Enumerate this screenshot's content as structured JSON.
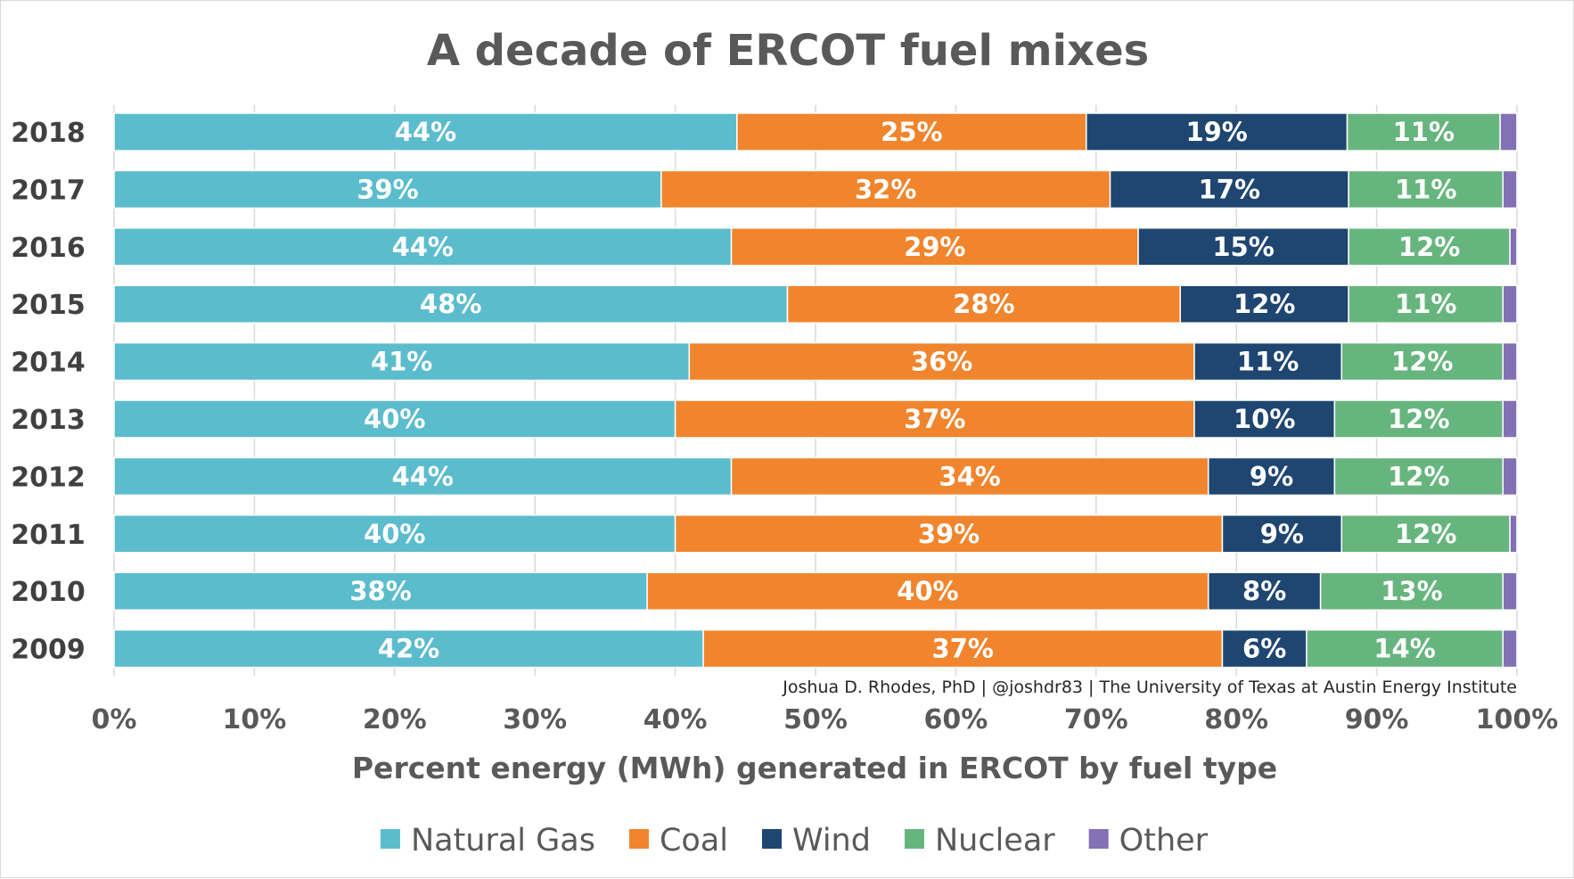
{
  "chart_data": {
    "type": "bar",
    "orientation": "horizontal",
    "stacked": "percent",
    "title": "A decade of ERCOT fuel mixes",
    "xlabel": "Percent energy (MWh) generated in ERCOT by fuel type",
    "ylabel": "",
    "xlim": [
      0,
      100
    ],
    "x_ticks": [
      "0%",
      "10%",
      "20%",
      "30%",
      "40%",
      "50%",
      "60%",
      "70%",
      "80%",
      "90%",
      "100%"
    ],
    "grid": true,
    "legend_position": "bottom",
    "credit": "Joshua D. Rhodes, PhD | @joshdr83 | The University of Texas at Austin Energy Institute",
    "categories": [
      "2018",
      "2017",
      "2016",
      "2015",
      "2014",
      "2013",
      "2012",
      "2011",
      "2010",
      "2009"
    ],
    "series": [
      {
        "name": "Natural Gas",
        "color": "#5bbccd",
        "values": [
          44.4,
          39.0,
          44.0,
          48.0,
          41.0,
          40.0,
          44.0,
          40.0,
          38.0,
          42.0
        ],
        "labels": [
          "44%",
          "39%",
          "44%",
          "48%",
          "41%",
          "40%",
          "44%",
          "40%",
          "38%",
          "42%"
        ]
      },
      {
        "name": "Coal",
        "color": "#f0852d",
        "values": [
          24.9,
          32.0,
          29.0,
          28.0,
          36.0,
          37.0,
          34.0,
          39.0,
          40.0,
          37.0
        ],
        "labels": [
          "25%",
          "32%",
          "29%",
          "28%",
          "36%",
          "37%",
          "34%",
          "39%",
          "40%",
          "37%"
        ]
      },
      {
        "name": "Wind",
        "color": "#1f4670",
        "values": [
          18.6,
          17.0,
          15.0,
          12.0,
          10.5,
          10.0,
          9.0,
          8.5,
          8.0,
          6.0
        ],
        "labels": [
          "19%",
          "17%",
          "15%",
          "12%",
          "11%",
          "10%",
          "9%",
          "9%",
          "8%",
          "6%"
        ]
      },
      {
        "name": "Nuclear",
        "color": "#67b57e",
        "values": [
          10.9,
          11.0,
          11.5,
          11.0,
          11.5,
          12.0,
          12.0,
          12.0,
          13.0,
          14.0
        ],
        "labels": [
          "11%",
          "11%",
          "12%",
          "11%",
          "12%",
          "12%",
          "12%",
          "12%",
          "13%",
          "14%"
        ]
      },
      {
        "name": "Other",
        "color": "#8470b5",
        "values": [
          1.2,
          1.0,
          0.5,
          1.0,
          1.0,
          1.0,
          1.0,
          0.5,
          1.0,
          1.0
        ],
        "labels": [
          "",
          "",
          "",
          "",
          "",
          "",
          "",
          "",
          "",
          ""
        ]
      }
    ]
  }
}
